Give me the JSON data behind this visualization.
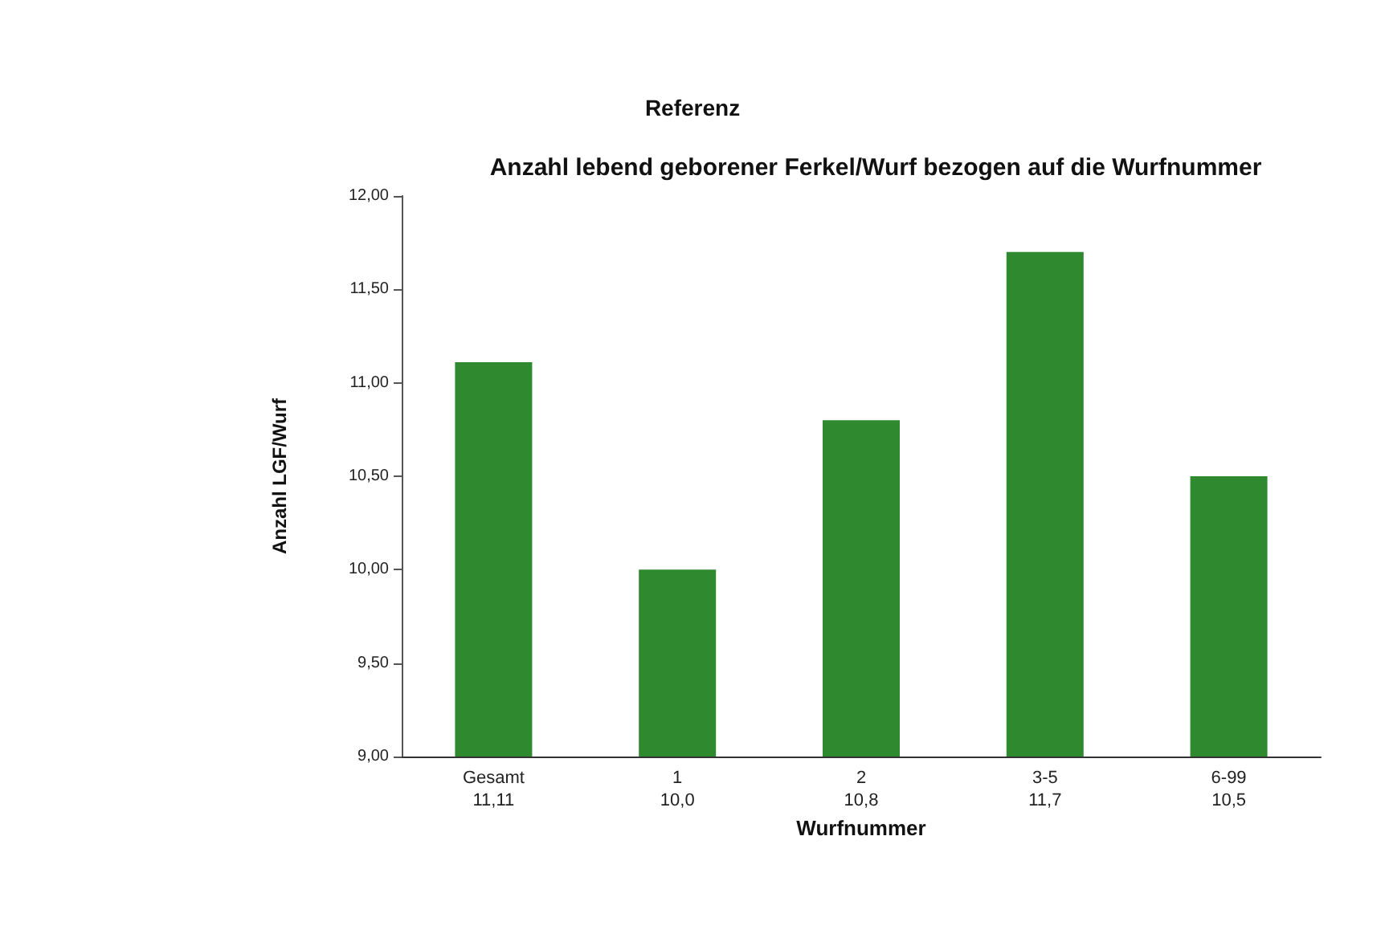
{
  "chart_data": {
    "type": "bar",
    "title": "Referenz",
    "subtitle": "Anzahl lebend geborener Ferkel/Wurf bezogen auf die Wurfnummer",
    "xlabel": "Wurfnummer",
    "ylabel": "Anzahl LGF/Wurf",
    "categories": [
      "Gesamt",
      "1",
      "2",
      "3-5",
      "6-99"
    ],
    "values": [
      11.11,
      10.0,
      10.8,
      11.7,
      10.5
    ],
    "value_labels": [
      "11,11",
      "10,0",
      "10,8",
      "11,7",
      "10,5"
    ],
    "color": "#2f8a2f",
    "ylim": [
      9,
      12
    ],
    "yticks": [
      {
        "value": 9,
        "label": "9,00"
      },
      {
        "value": 9.5,
        "label": "9,50"
      },
      {
        "value": 10,
        "label": "10,00"
      },
      {
        "value": 10.5,
        "label": "10,50"
      },
      {
        "value": 11,
        "label": "11,00"
      },
      {
        "value": 11.5,
        "label": "11,50"
      },
      {
        "value": 12,
        "label": "12,00"
      }
    ],
    "grid": false
  }
}
